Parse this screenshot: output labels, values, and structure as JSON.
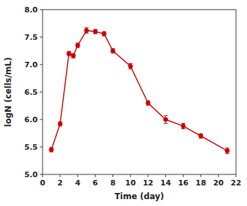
{
  "chart_data": {
    "type": "line",
    "x": [
      1,
      2,
      3,
      3.5,
      4,
      5,
      6,
      7,
      8,
      10,
      12,
      14,
      16,
      18,
      21
    ],
    "values": [
      5.45,
      5.92,
      7.2,
      7.16,
      7.35,
      7.62,
      7.6,
      7.56,
      7.25,
      6.97,
      6.3,
      6.0,
      5.88,
      5.7,
      5.43
    ],
    "yerr": [
      0.04,
      0.04,
      0.04,
      0.04,
      0.04,
      0.05,
      0.04,
      0.04,
      0.04,
      0.05,
      0.04,
      0.07,
      0.05,
      0.04,
      0.05
    ],
    "color": "#cc0000",
    "marker": "circle",
    "xlabel": "Time (day)",
    "ylabel": "logN (cells/mL)",
    "xlim": [
      0,
      22
    ],
    "ylim": [
      5.0,
      8.0
    ],
    "xticks": [
      0,
      2,
      4,
      6,
      8,
      10,
      12,
      14,
      16,
      18,
      20,
      22
    ],
    "yticks": [
      {
        "value": 5.0,
        "label": "5.0"
      },
      5.5,
      {
        "value": 6.0,
        "label": "6.0"
      },
      6.5,
      {
        "value": 7.0,
        "label": "7.0"
      },
      7.5,
      {
        "value": 8.0,
        "label": "8.0"
      }
    ]
  }
}
